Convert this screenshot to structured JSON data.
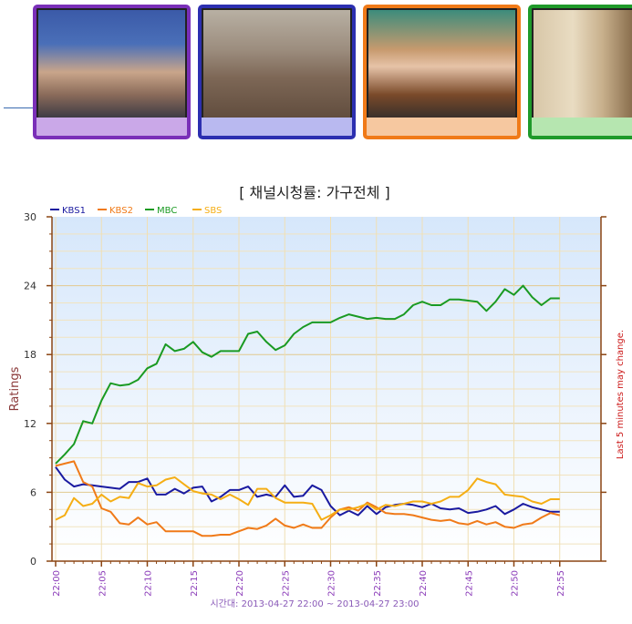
{
  "thumbnails": [
    {
      "channel": "KBS1",
      "color": "#7a2fb8",
      "base": "#caa8e8"
    },
    {
      "channel": "KBS2",
      "color": "#2c2fb0",
      "base": "#b9b9f0"
    },
    {
      "channel": "MBC",
      "color": "#f07a18",
      "base": "#f6c8a0"
    },
    {
      "channel": "SBS",
      "color": "#1f9a2a",
      "base": "#b6e6b0"
    }
  ],
  "chart_data": {
    "type": "line",
    "title": "[ 채널시청률: 가구전체 ]",
    "xlabel": "시간대: 2013-04-27 22:00 ~ 2013-04-27 23:00",
    "ylabel": "Ratings",
    "right_label": "Last 5 minutes may change.",
    "ylim": [
      0,
      30
    ],
    "yticks": [
      0,
      6,
      12,
      18,
      24,
      30
    ],
    "xticks": [
      "22:00",
      "22:05",
      "22:10",
      "22:15",
      "22:20",
      "22:25",
      "22:30",
      "22:35",
      "22:40",
      "22:45",
      "22:50",
      "22:55"
    ],
    "grid": true,
    "legend": "top-left",
    "series": [
      {
        "name": "KBS1",
        "color": "#1a1aa0",
        "values": [
          8.2,
          7.1,
          6.5,
          6.7,
          6.6,
          6.5,
          6.4,
          6.3,
          6.9,
          6.9,
          7.2,
          5.8,
          5.8,
          6.3,
          5.9,
          6.4,
          6.5,
          5.2,
          5.6,
          6.2,
          6.2,
          6.5,
          5.6,
          5.8,
          5.6,
          6.6,
          5.6,
          5.7,
          6.6,
          6.2,
          4.8,
          4.0,
          4.4,
          4.0,
          4.8,
          4.1,
          4.7,
          4.9,
          5.0,
          4.9,
          4.7,
          5.0,
          4.6,
          4.5,
          4.6,
          4.2,
          4.3,
          4.5,
          4.8,
          4.1,
          4.5,
          5.0,
          4.7,
          4.5,
          4.3,
          4.3
        ]
      },
      {
        "name": "KBS2",
        "color": "#f07a18",
        "values": [
          8.3,
          8.5,
          8.7,
          6.9,
          6.5,
          4.6,
          4.3,
          3.3,
          3.2,
          3.8,
          3.2,
          3.4,
          2.6,
          2.6,
          2.6,
          2.6,
          2.2,
          2.2,
          2.3,
          2.3,
          2.6,
          2.9,
          2.8,
          3.1,
          3.7,
          3.1,
          2.9,
          3.2,
          2.9,
          2.9,
          3.8,
          4.5,
          4.7,
          4.4,
          5.1,
          4.7,
          4.2,
          4.1,
          4.1,
          4.0,
          3.8,
          3.6,
          3.5,
          3.6,
          3.3,
          3.2,
          3.5,
          3.2,
          3.4,
          3.0,
          2.9,
          3.2,
          3.3,
          3.8,
          4.2,
          4.0
        ]
      },
      {
        "name": "MBC",
        "color": "#1a9a22",
        "values": [
          8.5,
          9.3,
          10.2,
          12.2,
          12.0,
          14.0,
          15.5,
          15.3,
          15.4,
          15.8,
          16.8,
          17.2,
          18.9,
          18.3,
          18.5,
          19.1,
          18.2,
          17.8,
          18.3,
          18.3,
          18.3,
          19.8,
          20.0,
          19.1,
          18.4,
          18.8,
          19.8,
          20.4,
          20.8,
          20.8,
          20.8,
          21.2,
          21.5,
          21.3,
          21.1,
          21.2,
          21.1,
          21.1,
          21.5,
          22.3,
          22.6,
          22.3,
          22.3,
          22.8,
          22.8,
          22.7,
          22.6,
          21.8,
          22.6,
          23.7,
          23.2,
          24.0,
          23.0,
          22.3,
          22.9,
          22.9
        ]
      },
      {
        "name": "SBS",
        "color": "#f5ae14",
        "values": [
          3.6,
          4.0,
          5.5,
          4.8,
          5.0,
          5.8,
          5.2,
          5.6,
          5.5,
          6.8,
          6.5,
          6.6,
          7.1,
          7.3,
          6.7,
          6.1,
          5.9,
          5.8,
          5.4,
          5.8,
          5.4,
          4.9,
          6.3,
          6.3,
          5.5,
          5.1,
          5.1,
          5.1,
          5.0,
          3.6,
          4.0,
          4.5,
          4.5,
          4.7,
          5.0,
          4.5,
          4.9,
          4.8,
          5.0,
          5.2,
          5.2,
          5.0,
          5.2,
          5.6,
          5.6,
          6.2,
          7.2,
          6.9,
          6.7,
          5.8,
          5.7,
          5.6,
          5.2,
          5.0,
          5.4,
          5.4
        ]
      }
    ]
  }
}
